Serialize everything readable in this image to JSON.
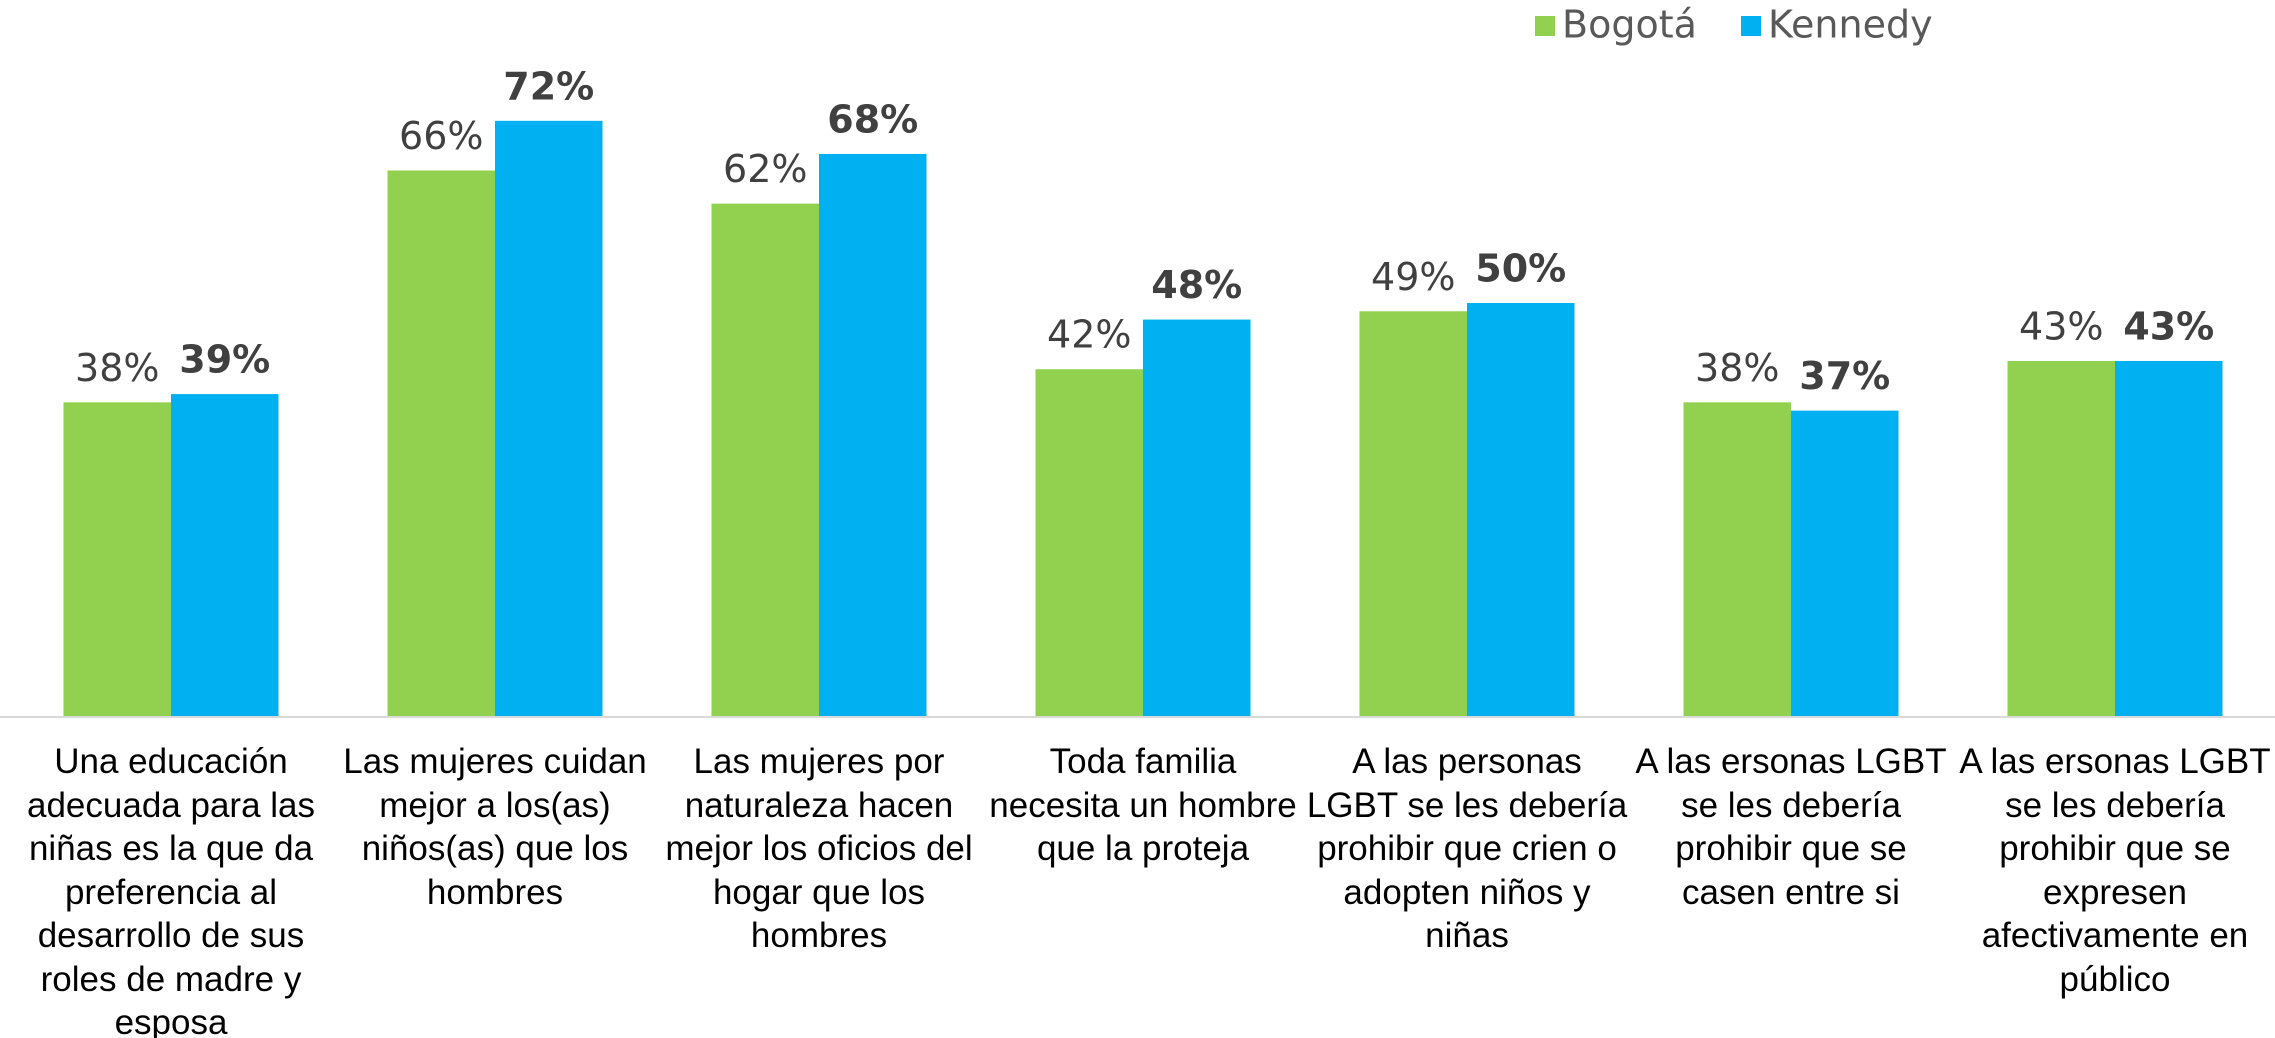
{
  "chart_data": {
    "type": "bar",
    "categories": [
      "Una educación adecuada para las niñas es la que da preferencia al desarrollo de sus roles de madre y esposa",
      "Las mujeres cuidan mejor a los(as) niños(as) que los hombres",
      "Las mujeres por naturaleza hacen mejor los oficios del hogar que los hombres",
      "Toda familia necesita un hombre que la proteja",
      "A las personas LGBT se les debería prohibir que crien o adopten niños y niñas",
      "A las ersonas LGBT se les debería prohibir que se casen entre si",
      "A las ersonas LGBT se les debería prohibir que se expresen afectivamente en público"
    ],
    "series": [
      {
        "name": "Bogotá",
        "color": "#92d050",
        "values": [
          38,
          66,
          62,
          42,
          49,
          38,
          43
        ],
        "value_labels": [
          "38%",
          "66%",
          "62%",
          "42%",
          "49%",
          "38%",
          "43%"
        ]
      },
      {
        "name": "Kennedy",
        "color": "#00b0f0",
        "values": [
          39,
          72,
          68,
          48,
          50,
          37,
          43
        ],
        "value_labels": [
          "39%",
          "72%",
          "68%",
          "48%",
          "50%",
          "37%",
          "43%"
        ]
      }
    ],
    "legend": "top-right"
  }
}
